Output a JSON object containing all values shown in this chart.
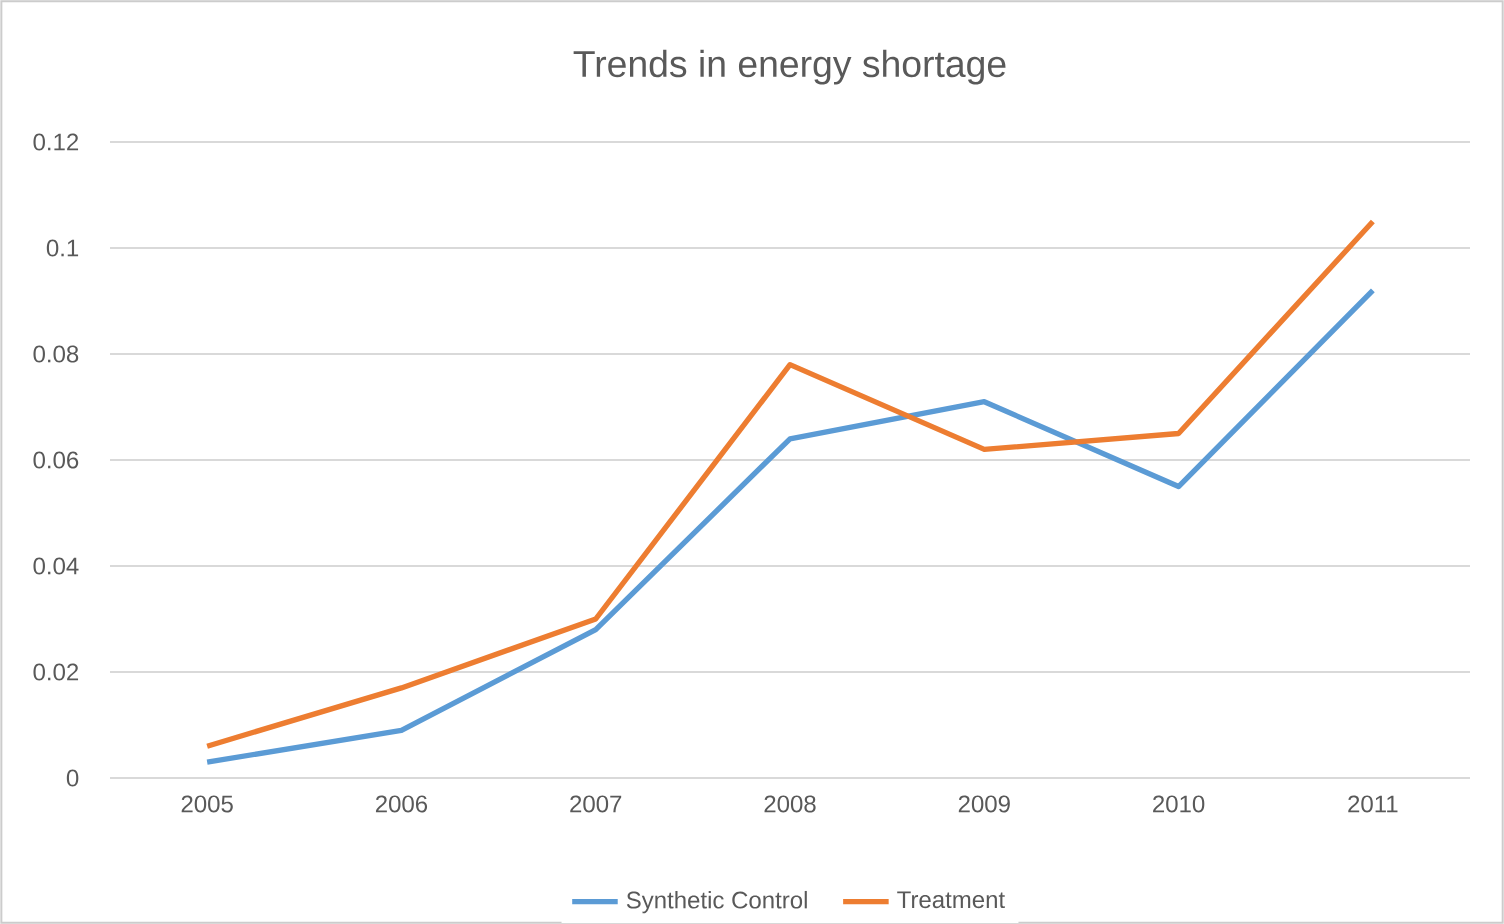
{
  "chart_data": {
    "type": "line",
    "title": "Trends in energy shortage",
    "categories": [
      "2005",
      "2006",
      "2007",
      "2008",
      "2009",
      "2010",
      "2011"
    ],
    "series": [
      {
        "name": "Synthetic Control",
        "color": "#5b9bd5",
        "values": [
          0.003,
          0.009,
          0.028,
          0.064,
          0.071,
          0.055,
          0.092
        ]
      },
      {
        "name": "Treatment",
        "color": "#ed7d31",
        "values": [
          0.006,
          0.017,
          0.03,
          0.078,
          0.062,
          0.065,
          0.105
        ]
      }
    ],
    "ylim": [
      0,
      0.12
    ],
    "yticks": [
      0,
      0.02,
      0.04,
      0.06,
      0.08,
      0.1,
      0.12
    ],
    "grid": "y",
    "legend": "bottom",
    "marker": "none",
    "line_style": "solid"
  }
}
